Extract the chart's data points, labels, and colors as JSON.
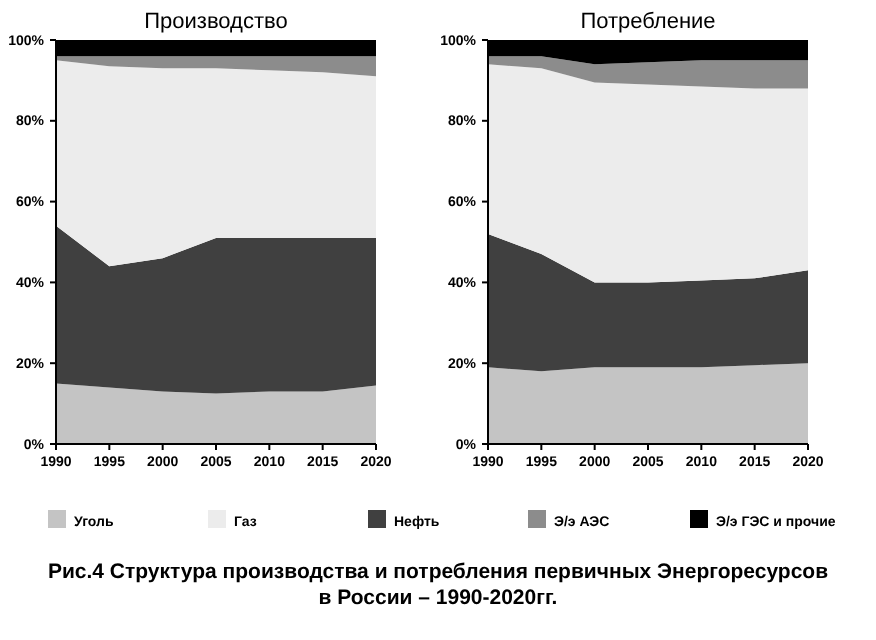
{
  "chart_data": [
    {
      "type": "area",
      "title": "Производство",
      "stacked": true,
      "x": [
        1990,
        1995,
        2000,
        2005,
        2010,
        2015,
        2020
      ],
      "xlim": [
        1990,
        2020
      ],
      "xticks": [
        1990,
        1995,
        2000,
        2005,
        2010,
        2015,
        2020
      ],
      "ylim": [
        0,
        100
      ],
      "yticks": [
        {
          "value": 0,
          "label": "0%"
        },
        {
          "value": 20,
          "label": "20%"
        },
        {
          "value": 40,
          "label": "40%"
        },
        {
          "value": 60,
          "label": "60%"
        },
        {
          "value": 80,
          "label": "80%"
        },
        {
          "value": 100,
          "label": "100%"
        }
      ],
      "legend": "bottom",
      "annotations": [
        "Рис.4 Структура производства и потребления первичных Энергоресурсов в России – 1990-2020гг."
      ],
      "series": [
        {
          "name": "Уголь",
          "color": "#c4c4c4",
          "values": [
            15,
            14,
            13,
            12.5,
            13,
            13,
            14.5
          ]
        },
        {
          "name": "Нефть",
          "color": "#404040",
          "values": [
            39,
            30,
            33,
            38.5,
            38,
            38,
            36.5
          ]
        },
        {
          "name": "Газ",
          "color": "#ececec",
          "values": [
            41,
            49.5,
            47,
            42,
            41.5,
            41,
            40
          ]
        },
        {
          "name": "Э/э АЭС",
          "color": "#8c8c8c",
          "values": [
            1,
            2.5,
            3,
            3,
            3.5,
            4,
            5
          ]
        },
        {
          "name": "Э/э ГЭС и прочие",
          "color": "#000000",
          "values": [
            4,
            4,
            4,
            4,
            4,
            4,
            4
          ]
        }
      ]
    },
    {
      "type": "area",
      "title": "Потребление",
      "stacked": true,
      "x": [
        1990,
        1995,
        2000,
        2005,
        2010,
        2015,
        2020
      ],
      "xlim": [
        1990,
        2020
      ],
      "xticks": [
        1990,
        1995,
        2000,
        2005,
        2010,
        2015,
        2020
      ],
      "ylim": [
        0,
        100
      ],
      "yticks": [
        {
          "value": 0,
          "label": "0%"
        },
        {
          "value": 20,
          "label": "20%"
        },
        {
          "value": 40,
          "label": "40%"
        },
        {
          "value": 60,
          "label": "60%"
        },
        {
          "value": 80,
          "label": "80%"
        },
        {
          "value": 100,
          "label": "100%"
        }
      ],
      "series": [
        {
          "color": "#c4c4c4",
          "values": [
            19,
            18,
            19,
            19,
            19,
            19.5,
            20
          ]
        },
        {
          "color": "#404040",
          "values": [
            33,
            29,
            21,
            21,
            21.5,
            21.5,
            23
          ]
        },
        {
          "color": "#ececec",
          "values": [
            42,
            46,
            49.5,
            49,
            48,
            47,
            45
          ]
        },
        {
          "color": "#8c8c8c",
          "values": [
            2,
            3,
            4.5,
            5.5,
            6.5,
            7,
            7
          ]
        },
        {
          "color": "#000000",
          "values": [
            4,
            4,
            6,
            5.5,
            5,
            5,
            5
          ]
        }
      ]
    }
  ]
}
